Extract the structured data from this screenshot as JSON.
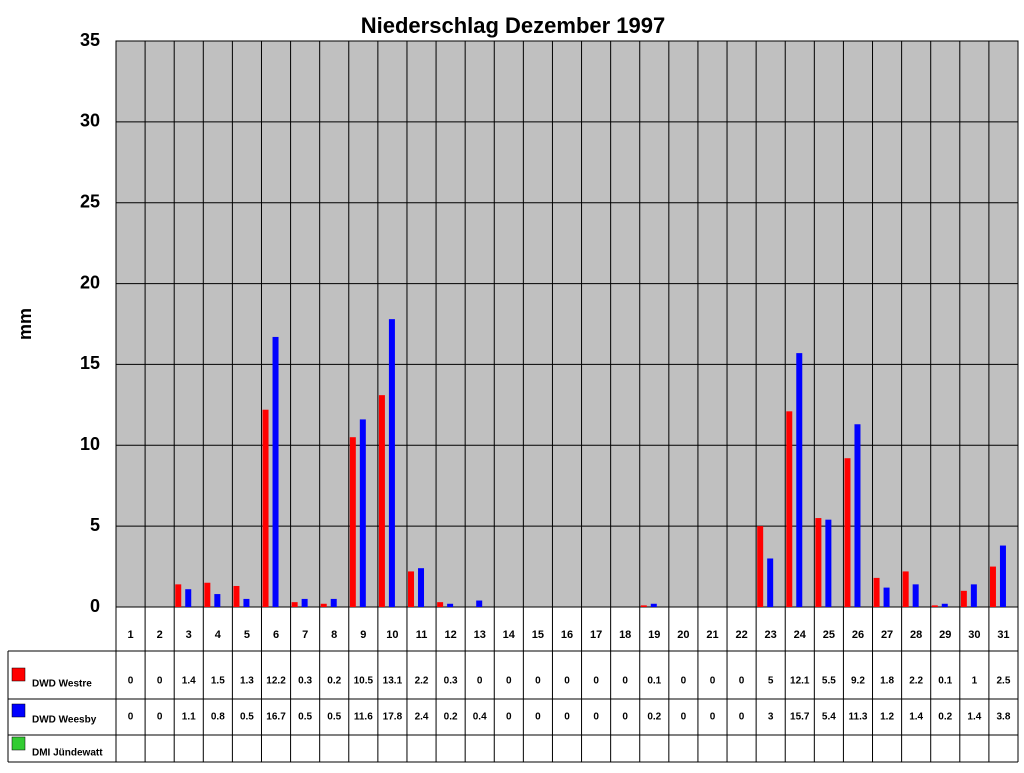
{
  "chart_data": {
    "type": "bar",
    "title": "Niederschlag Dezember 1997",
    "y_label": "mm",
    "categories": [
      "1",
      "2",
      "3",
      "4",
      "5",
      "6",
      "7",
      "8",
      "9",
      "10",
      "11",
      "12",
      "13",
      "14",
      "15",
      "16",
      "17",
      "18",
      "19",
      "20",
      "21",
      "22",
      "23",
      "24",
      "25",
      "26",
      "27",
      "28",
      "29",
      "30",
      "31"
    ],
    "series": [
      {
        "name": "DWD Westre",
        "color": "#ff0000",
        "values": [
          0,
          0,
          1.4,
          1.5,
          1.3,
          12.2,
          0.3,
          0.2,
          10.5,
          13.1,
          2.2,
          0.3,
          0,
          0,
          0,
          0,
          0,
          0,
          0.1,
          0,
          0,
          0,
          5,
          12.1,
          5.5,
          9.2,
          1.8,
          2.2,
          0.1,
          1,
          2.5
        ]
      },
      {
        "name": "DWD Weesby",
        "color": "#0000ff",
        "values": [
          0,
          0,
          1.1,
          0.8,
          0.5,
          16.7,
          0.5,
          0.5,
          11.6,
          17.8,
          2.4,
          0.2,
          0.4,
          0,
          0,
          0,
          0,
          0,
          0.2,
          0,
          0,
          0,
          3,
          15.7,
          5.4,
          11.3,
          1.2,
          1.4,
          0.2,
          1.4,
          3.8
        ]
      },
      {
        "name": "DMI Jündewatt",
        "color": "#33cc33",
        "values": [
          null,
          null,
          null,
          null,
          null,
          null,
          null,
          null,
          null,
          null,
          null,
          null,
          null,
          null,
          null,
          null,
          null,
          null,
          null,
          null,
          null,
          null,
          null,
          null,
          null,
          null,
          null,
          null,
          null,
          null,
          null
        ]
      }
    ],
    "ylim": [
      0,
      35
    ],
    "yticks": [
      0,
      5,
      10,
      15,
      20,
      25,
      30,
      35
    ],
    "grid": true
  }
}
